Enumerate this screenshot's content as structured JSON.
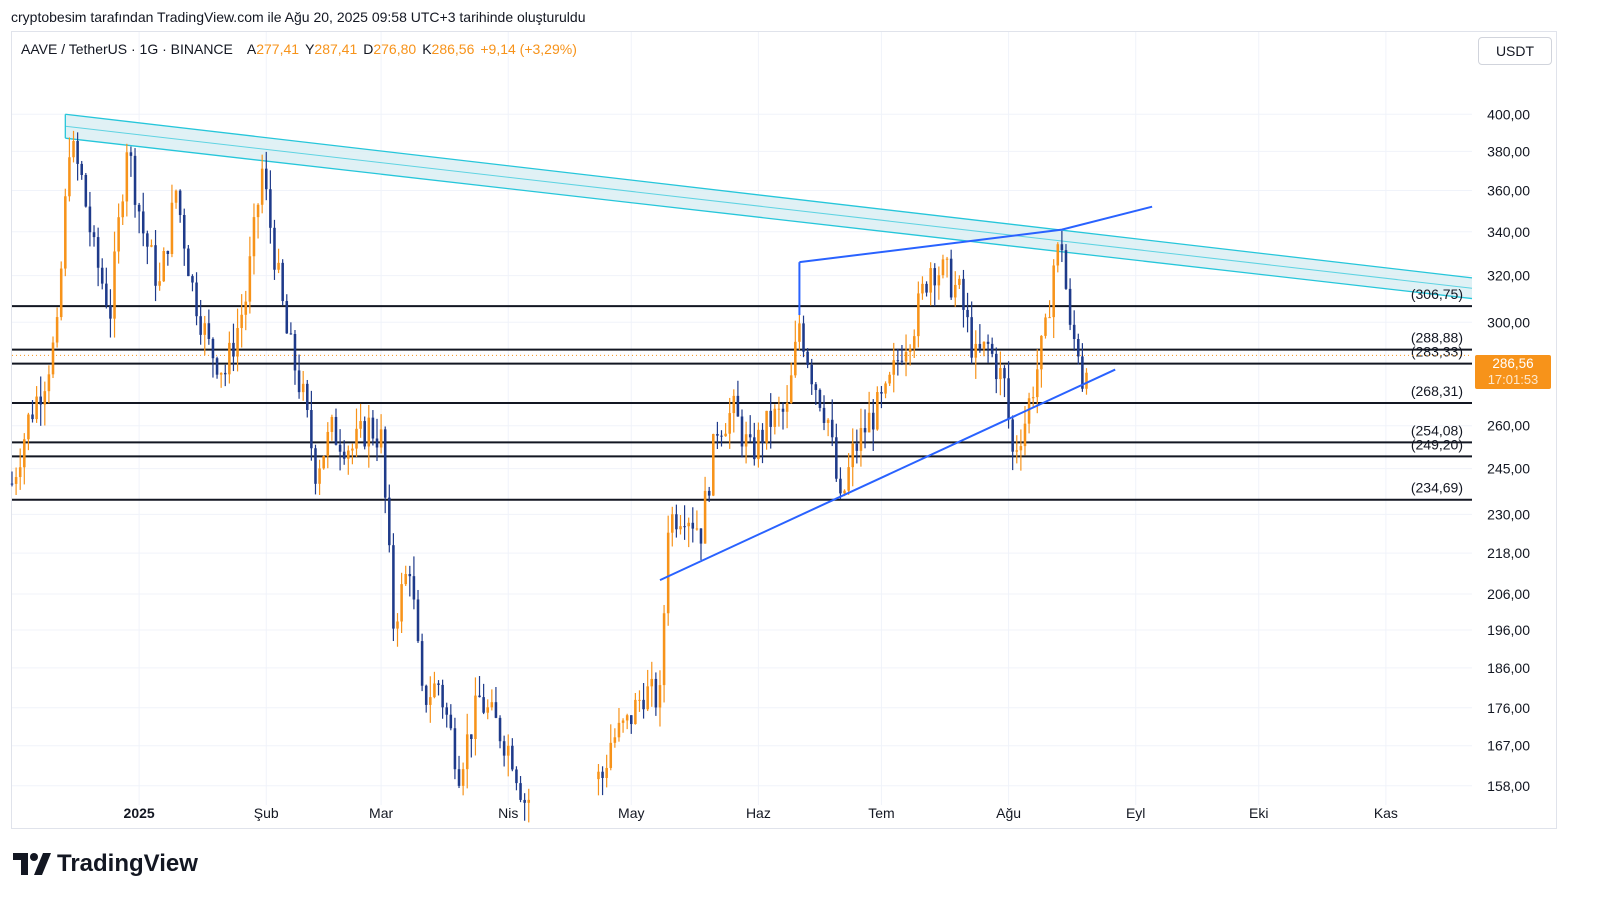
{
  "attribution": "cryptobesim tarafından TradingView.com ile Ağu 20, 2025 09:58 UTC+3 tarihinde oluşturuldu",
  "header": {
    "symbol": "AAVE / TetherUS · 1G · BINANCE",
    "open_label": "A",
    "open": "277,41",
    "high_label": "Y",
    "high": "287,41",
    "low_label": "D",
    "low": "276,80",
    "close_label": "K",
    "close": "286,56",
    "change": "+9,14 (+3,29%)"
  },
  "currency_button": "USDT",
  "price_tag": {
    "price": "286,56",
    "countdown": "17:01:53"
  },
  "logo_text": "TradingView",
  "colors": {
    "up": "#f7931a",
    "down": "#1e3a8a",
    "level": "#131722",
    "channel": "#26c6da",
    "channel_fill": "#d8eef2",
    "trend": "#2962ff",
    "grid": "#f0f3fa"
  },
  "chart_data": {
    "type": "candlestick",
    "y_axis_scale": "log",
    "ylim": [
      156,
      430
    ],
    "y_ticks": [
      "400,00",
      "380,00",
      "360,00",
      "340,00",
      "320,00",
      "300,00",
      "260,00",
      "245,00",
      "230,00",
      "218,00",
      "206,00",
      "196,00",
      "186,00",
      "176,00",
      "167,00",
      "158,00"
    ],
    "x_ticks": [
      "2025",
      "Şub",
      "Mar",
      "Nis",
      "May",
      "Haz",
      "Tem",
      "Ağu",
      "Eyl",
      "Eki",
      "Kas"
    ],
    "x_tick_dates": [
      "2025-01-01",
      "2025-02-01",
      "2025-03-01",
      "2025-04-01",
      "2025-05-01",
      "2025-06-01",
      "2025-07-01",
      "2025-08-01",
      "2025-09-01",
      "2025-10-01",
      "2025-11-01"
    ],
    "x_range": [
      "2024-12-01",
      "2025-11-22"
    ],
    "levels": [
      {
        "label": "(306,75)",
        "value": 306.75
      },
      {
        "label": "(288,88)",
        "value": 288.88
      },
      {
        "label": "(283,33)",
        "value": 283.33
      },
      {
        "label": "(268,31)",
        "value": 268.31
      },
      {
        "label": "(254,08)",
        "value": 254.08
      },
      {
        "label": "(249,20)",
        "value": 249.2
      },
      {
        "label": "(234,69)",
        "value": 234.69
      }
    ],
    "current_price": 286.56,
    "descending_channel": {
      "upper": [
        [
          "2024-12-14",
          400
        ],
        [
          "2025-11-22",
          319
        ]
      ],
      "lower": [
        [
          "2024-12-14",
          387
        ],
        [
          "2025-11-22",
          310
        ]
      ]
    },
    "ascending_triangle": {
      "support": [
        [
          "2025-05-08",
          210
        ],
        [
          "2025-08-27",
          281
        ]
      ],
      "resistance": [
        [
          "2025-06-11",
          326
        ],
        [
          "2025-08-14",
          341
        ],
        [
          "2025-09-05",
          352
        ]
      ],
      "vertical_tick": [
        [
          "2025-06-11",
          326
        ],
        [
          "2025-06-11",
          303
        ]
      ]
    },
    "ohlc_anchors": [
      [
        "2024-12-01",
        240
      ],
      [
        "2024-12-05",
        262
      ],
      [
        "2024-12-09",
        278
      ],
      [
        "2024-12-12",
        295
      ],
      [
        "2024-12-15",
        385
      ],
      [
        "2024-12-18",
        365
      ],
      [
        "2024-12-21",
        330
      ],
      [
        "2024-12-25",
        305
      ],
      [
        "2024-12-29",
        385
      ],
      [
        "2025-01-02",
        340
      ],
      [
        "2025-01-06",
        315
      ],
      [
        "2025-01-10",
        360
      ],
      [
        "2025-01-14",
        315
      ],
      [
        "2025-01-18",
        290
      ],
      [
        "2025-01-22",
        280
      ],
      [
        "2025-01-27",
        310
      ],
      [
        "2025-01-31",
        370
      ],
      [
        "2025-02-03",
        330
      ],
      [
        "2025-02-06",
        295
      ],
      [
        "2025-02-10",
        270
      ],
      [
        "2025-02-13",
        245
      ],
      [
        "2025-02-17",
        258
      ],
      [
        "2025-02-22",
        252
      ],
      [
        "2025-02-26",
        260
      ],
      [
        "2025-03-01",
        255
      ],
      [
        "2025-03-04",
        198
      ],
      [
        "2025-03-08",
        215
      ],
      [
        "2025-03-11",
        178
      ],
      [
        "2025-03-15",
        182
      ],
      [
        "2025-03-20",
        162
      ],
      [
        "2025-03-25",
        178
      ],
      [
        "2025-03-29",
        172
      ],
      [
        "2025-04-02",
        165
      ],
      [
        "2025-04-04",
        158
      ],
      [
        "2025-04-05",
        155
      ],
      [
        "2025-04-24",
        160
      ],
      [
        "2025-04-26",
        168
      ],
      [
        "2025-04-30",
        172
      ],
      [
        "2025-05-04",
        180
      ],
      [
        "2025-05-08",
        178
      ],
      [
        "2025-05-10",
        228
      ],
      [
        "2025-05-14",
        232
      ],
      [
        "2025-05-18",
        225
      ],
      [
        "2025-05-22",
        260
      ],
      [
        "2025-05-26",
        265
      ],
      [
        "2025-05-30",
        250
      ],
      [
        "2025-06-04",
        262
      ],
      [
        "2025-06-08",
        265
      ],
      [
        "2025-06-11",
        300
      ],
      [
        "2025-06-14",
        280
      ],
      [
        "2025-06-18",
        262
      ],
      [
        "2025-06-21",
        232
      ],
      [
        "2025-06-24",
        250
      ],
      [
        "2025-06-28",
        262
      ],
      [
        "2025-07-02",
        270
      ],
      [
        "2025-07-06",
        290
      ],
      [
        "2025-07-09",
        300
      ],
      [
        "2025-07-13",
        325
      ],
      [
        "2025-07-17",
        320
      ],
      [
        "2025-07-20",
        312
      ],
      [
        "2025-07-24",
        285
      ],
      [
        "2025-07-27",
        290
      ],
      [
        "2025-07-31",
        275
      ],
      [
        "2025-08-02",
        250
      ],
      [
        "2025-08-05",
        262
      ],
      [
        "2025-08-07",
        275
      ],
      [
        "2025-08-10",
        295
      ],
      [
        "2025-08-12",
        325
      ],
      [
        "2025-08-14",
        335
      ],
      [
        "2025-08-16",
        295
      ],
      [
        "2025-08-18",
        290
      ],
      [
        "2025-08-19",
        277
      ],
      [
        "2025-08-20",
        286.56
      ]
    ]
  }
}
